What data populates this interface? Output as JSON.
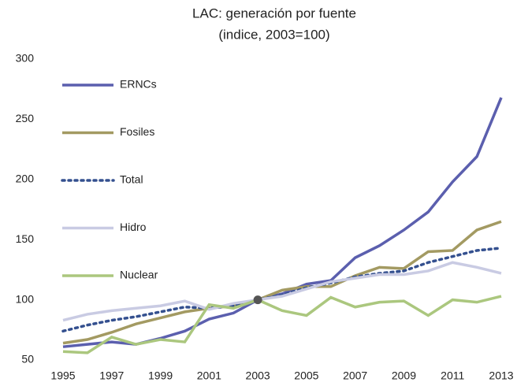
{
  "chart_data": {
    "type": "line",
    "title": "LAC: generación por fuente",
    "subtitle": "(indice, 2003=100)",
    "x": [
      1995,
      1996,
      1997,
      1998,
      1999,
      2000,
      2001,
      2002,
      2003,
      2004,
      2005,
      2006,
      2007,
      2008,
      2009,
      2010,
      2011,
      2012,
      2013
    ],
    "xlim": [
      1995,
      2013
    ],
    "xticks": [
      1995,
      1997,
      1999,
      2001,
      2003,
      2005,
      2007,
      2009,
      2011,
      2013
    ],
    "ylim": [
      50,
      300
    ],
    "yticks": [
      50,
      100,
      150,
      200,
      250,
      300
    ],
    "grid": false,
    "legend": "left",
    "series": [
      {
        "name": "ERNCs",
        "color": "#5b5fae",
        "style": "solid",
        "values": [
          61,
          63,
          65,
          63,
          68,
          74,
          84,
          89,
          100,
          105,
          113,
          116,
          135,
          145,
          158,
          173,
          198,
          219,
          268
        ]
      },
      {
        "name": "Fosiles",
        "color": "#a39a62",
        "style": "solid",
        "values": [
          64,
          67,
          73,
          80,
          85,
          90,
          93,
          95,
          100,
          108,
          111,
          111,
          120,
          127,
          126,
          140,
          141,
          158,
          165
        ]
      },
      {
        "name": "Total",
        "color": "#34508f",
        "style": "dotted",
        "values": [
          74,
          79,
          83,
          86,
          90,
          94,
          93,
          95,
          100,
          104,
          110,
          114,
          119,
          122,
          124,
          131,
          136,
          141,
          143
        ]
      },
      {
        "name": "Hidro",
        "color": "#c9cbe3",
        "style": "solid",
        "values": [
          83,
          88,
          91,
          93,
          95,
          99,
          92,
          97,
          100,
          103,
          109,
          115,
          118,
          121,
          121,
          124,
          131,
          127,
          122
        ]
      },
      {
        "name": "Nuclear",
        "color": "#abc77e",
        "style": "solid",
        "values": [
          57,
          56,
          69,
          63,
          67,
          65,
          96,
          93,
          100,
          91,
          87,
          102,
          94,
          98,
          99,
          87,
          100,
          98,
          103
        ]
      }
    ],
    "highlight": {
      "x": 2003,
      "y": 100,
      "color": "#555555"
    }
  }
}
